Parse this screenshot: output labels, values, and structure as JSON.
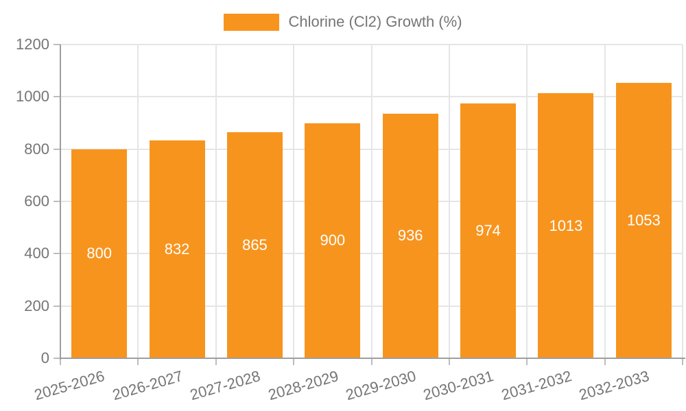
{
  "accent_color": "#F7941E",
  "text_color": "#757575",
  "grid_color": "#E5E5E5",
  "axis_color": "#9E9E9E",
  "bar_label_color": "#FFFFFF",
  "legend": {
    "swatch_icon": "orange-rect-swatch",
    "label": "Chlorine (Cl2) Growth (%)"
  },
  "chart_data": {
    "type": "bar",
    "title": "",
    "categories": [
      "2025-2026",
      "2026-2027",
      "2027-2028",
      "2028-2029",
      "2029-2030",
      "2030-2031",
      "2031-2032",
      "2032-2033"
    ],
    "series": [
      {
        "name": "Chlorine (Cl2) Growth (%)",
        "values": [
          800,
          832,
          865,
          900,
          936,
          974,
          1013,
          1053
        ]
      }
    ],
    "bar_value_labels": [
      "800",
      "832",
      "865",
      "900",
      "936",
      "974",
      "1013",
      "1053"
    ],
    "xlabel": "",
    "ylabel": "",
    "ylim": [
      0,
      1200
    ],
    "yticks": [
      0,
      200,
      400,
      600,
      800,
      1000,
      1200
    ],
    "ytick_labels": [
      "0",
      "200",
      "400",
      "600",
      "800",
      "1000",
      "1200"
    ],
    "grid": "on",
    "legend_position": "top",
    "bar_color": "#F7941E",
    "value_label_position": "middle-of-bar"
  }
}
